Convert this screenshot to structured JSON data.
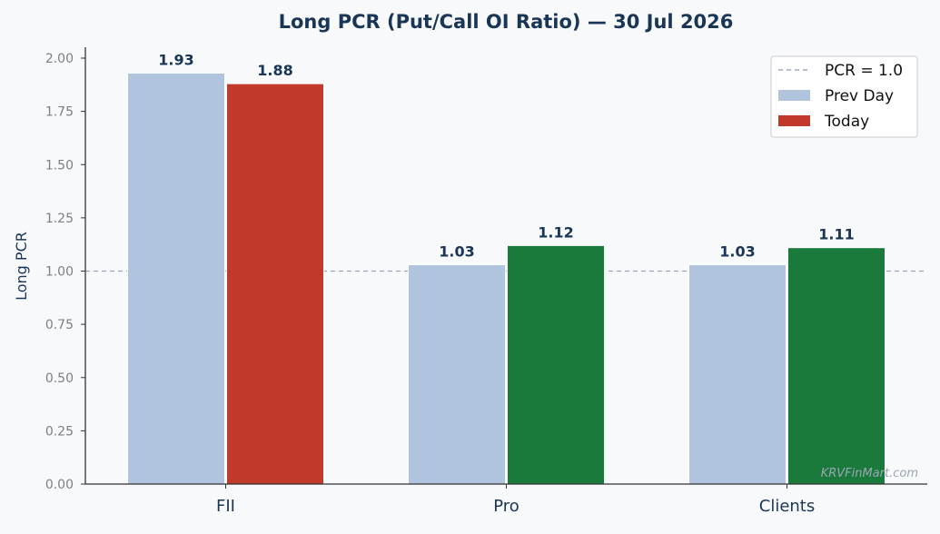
{
  "chart_data": {
    "type": "bar",
    "title": "Long PCR (Put/Call OI Ratio) — 30 Jul 2026",
    "xlabel": "",
    "ylabel": "Long PCR",
    "ylim": [
      0,
      2.0
    ],
    "yticks": [
      "0.00",
      "0.25",
      "0.50",
      "0.75",
      "1.00",
      "1.25",
      "1.50",
      "1.75",
      "2.00"
    ],
    "categories": [
      "FII",
      "Pro",
      "Clients"
    ],
    "series": [
      {
        "name": "Prev Day",
        "values": [
          1.93,
          1.03,
          1.03
        ],
        "labels": [
          "1.93",
          "1.03",
          "1.03"
        ],
        "colors": [
          "#b0c4de",
          "#b0c4de",
          "#b0c4de"
        ]
      },
      {
        "name": "Today",
        "values": [
          1.88,
          1.12,
          1.11
        ],
        "labels": [
          "1.88",
          "1.12",
          "1.11"
        ],
        "colors": [
          "#c0392b",
          "#1a7a3c",
          "#1a7a3c"
        ]
      }
    ],
    "reference_line": {
      "name": "PCR = 1.0",
      "value": 1.0,
      "style": "dashed",
      "color": "#8a9bb5"
    },
    "legend": {
      "position": "top-right",
      "entries": [
        {
          "label": "PCR = 1.0",
          "kind": "line",
          "color": "#8a9bb5"
        },
        {
          "label": "Prev Day",
          "kind": "patch",
          "color": "#b0c4de"
        },
        {
          "label": "Today",
          "kind": "patch",
          "color": "#c0392b"
        }
      ]
    },
    "grid": false,
    "watermark": "KRVFinMart.com",
    "colors": {
      "title": "#1a3657",
      "value_label": "#1a3657",
      "tick_label": "#7f7f7f",
      "category_label": "#1a3657",
      "axis": "#333333"
    }
  }
}
